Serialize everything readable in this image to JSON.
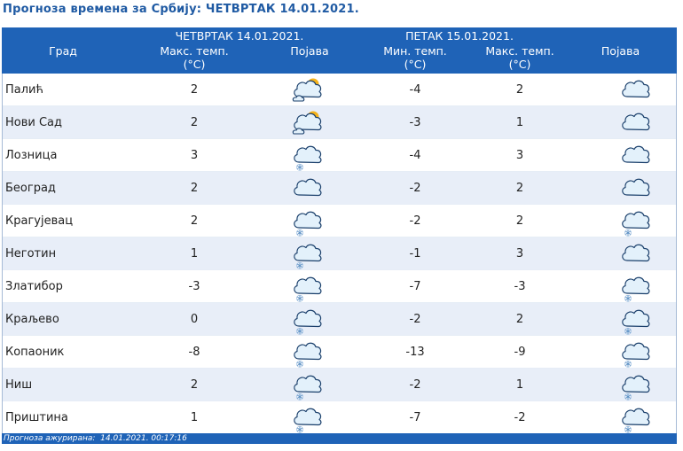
{
  "page_title": "Прогноза времена за Србију: ЧЕТВРТАК  14.01.2021.",
  "header": {
    "city": "Град",
    "day1": "ЧЕТВРТАК  14.01.2021.",
    "max_temp_1": "Макс. темп.",
    "unit_1": "(°C)",
    "phenomenon_1": "Појава",
    "day2": "ПЕТАК  15.01.2021.",
    "min_temp_2": "Мин. темп.",
    "unit_2": "(°C)",
    "max_temp_2": "Макс. темп.",
    "unit_3": "(°C)",
    "phenomenon_2": "Појава"
  },
  "rows": [
    {
      "city": "Палић",
      "max1": "2",
      "icon1": "partly-cloudy-icon",
      "min2": "-4",
      "max2": "2",
      "icon2": "cloudy-icon"
    },
    {
      "city": "Нови Сад",
      "max1": "2",
      "icon1": "partly-cloudy-icon",
      "min2": "-3",
      "max2": "1",
      "icon2": "cloudy-icon"
    },
    {
      "city": "Лозница",
      "max1": "3",
      "icon1": "cloud-snow-icon",
      "min2": "-4",
      "max2": "3",
      "icon2": "cloudy-icon"
    },
    {
      "city": "Београд",
      "max1": "2",
      "icon1": "cloudy-icon",
      "min2": "-2",
      "max2": "2",
      "icon2": "cloudy-icon"
    },
    {
      "city": "Крагујевац",
      "max1": "2",
      "icon1": "cloud-snow-icon",
      "min2": "-2",
      "max2": "2",
      "icon2": "cloud-snow-icon"
    },
    {
      "city": "Неготин",
      "max1": "1",
      "icon1": "cloud-snow-icon",
      "min2": "-1",
      "max2": "3",
      "icon2": "cloudy-icon"
    },
    {
      "city": "Златибор",
      "max1": "-3",
      "icon1": "cloud-snow-icon",
      "min2": "-7",
      "max2": "-3",
      "icon2": "cloud-snow-icon"
    },
    {
      "city": "Краљево",
      "max1": "0",
      "icon1": "cloud-snow-icon",
      "min2": "-2",
      "max2": "2",
      "icon2": "cloud-snow-icon"
    },
    {
      "city": "Копаоник",
      "max1": "-8",
      "icon1": "cloud-snow-icon",
      "min2": "-13",
      "max2": "-9",
      "icon2": "cloud-snow-icon"
    },
    {
      "city": "Ниш",
      "max1": "2",
      "icon1": "cloud-snow-icon",
      "min2": "-2",
      "max2": "1",
      "icon2": "cloud-snow-icon"
    },
    {
      "city": "Приштина",
      "max1": "1",
      "icon1": "cloud-snow-icon",
      "min2": "-7",
      "max2": "-2",
      "icon2": "cloud-snow-icon"
    }
  ],
  "footer": "Прогноза ажурирана:  14.01.2021. 00:17:16",
  "colors": {
    "header_bg": "#1f63b7",
    "title": "#1f5aa3",
    "row_alt": "#e8eef8",
    "cloud_fill": "#e3f1fb",
    "cloud_stroke": "#1a3f6b",
    "sun": "#f3b21a"
  }
}
